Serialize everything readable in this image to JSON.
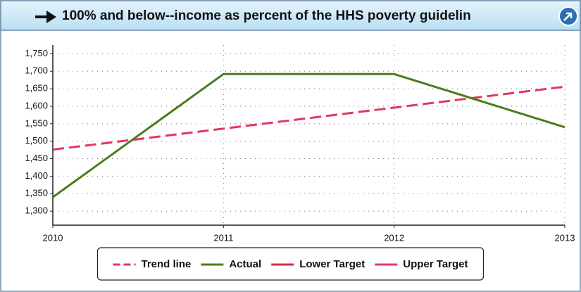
{
  "chart_data": {
    "type": "line",
    "title": "100% and below--income as percent of the HHS poverty guidelin",
    "x": [
      2010,
      2011,
      2012,
      2013
    ],
    "xlim": [
      2010,
      2013
    ],
    "xticks": [
      2010,
      2011,
      2012,
      2013
    ],
    "ylim": [
      1260,
      1775
    ],
    "yticks": [
      {
        "value": 1300,
        "label": "1,300"
      },
      {
        "value": 1350,
        "label": "1,350"
      },
      {
        "value": 1400,
        "label": "1,400"
      },
      {
        "value": 1450,
        "label": "1,450"
      },
      {
        "value": 1500,
        "label": "1,500"
      },
      {
        "value": 1550,
        "label": "1,550"
      },
      {
        "value": 1600,
        "label": "1,600"
      },
      {
        "value": 1650,
        "label": "1,650"
      },
      {
        "value": 1700,
        "label": "1,700"
      },
      {
        "value": 1750,
        "label": "1,750"
      }
    ],
    "grid": true,
    "legend": "bottom",
    "series": [
      {
        "name": "Trend line",
        "color": "#e8345a",
        "style": "dashed",
        "values": [
          1476,
          1536,
          1596,
          1656
        ]
      },
      {
        "name": "Actual",
        "color": "#4b7d1e",
        "style": "solid",
        "values": [
          1340,
          1692,
          1692,
          1540
        ]
      },
      {
        "name": "Lower Target",
        "color": "#d8303e",
        "style": "solid",
        "values": [
          null,
          null,
          null,
          null
        ]
      },
      {
        "name": "Upper Target",
        "color": "#e23c62",
        "style": "solid",
        "values": [
          null,
          null,
          null,
          null
        ]
      }
    ]
  }
}
